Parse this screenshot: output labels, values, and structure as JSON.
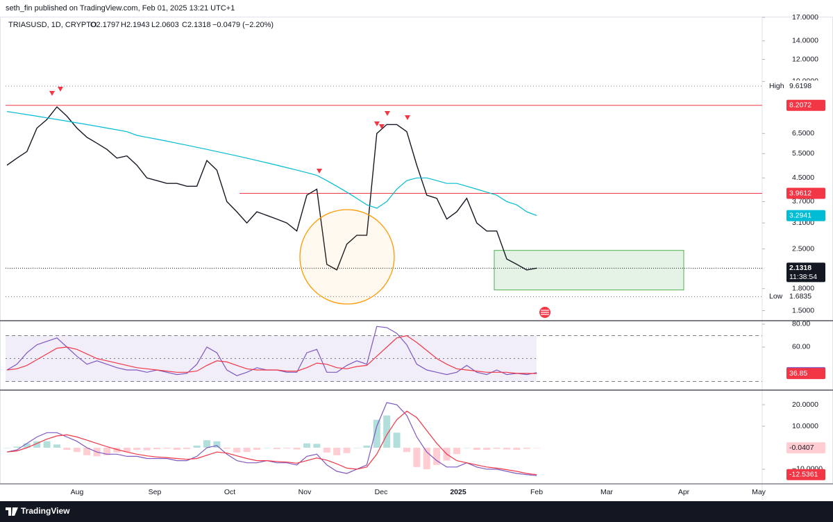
{
  "header": {
    "publisher": "seth_fin published on TradingView.com, Feb 01, 2025 13:21 UTC+1"
  },
  "legend": {
    "symbol": "TRIASUSD, 1D, CRYPTO",
    "open": "O2.1797",
    "high": "H2.1943",
    "low": "L2.0603",
    "close": "C2.1318",
    "change": "−0.0479 (−2.20%)"
  },
  "time_axis": {
    "labels": [
      "Aug",
      "Sep",
      "Oct",
      "Nov",
      "Dec",
      "2025",
      "Feb",
      "Mar",
      "Apr",
      "May"
    ]
  },
  "chart_data": [
    {
      "type": "line",
      "log_scale": true,
      "grid": false,
      "ylim": [
        1.38,
        17.1
      ],
      "yticks": [
        {
          "value": 17,
          "label": "17.0000"
        },
        {
          "value": 14,
          "label": "14.0000"
        },
        {
          "value": 12,
          "label": "12.0000"
        },
        {
          "value": 10,
          "label": "10.0000"
        },
        {
          "value": 6.5,
          "label": "6.5000"
        },
        {
          "value": 5.5,
          "label": "5.5000"
        },
        {
          "value": 4.5,
          "label": "4.5000"
        },
        {
          "value": 3.7,
          "label": "3.7000"
        },
        {
          "value": 3.1,
          "label": "3.1000"
        },
        {
          "value": 2.5,
          "label": "2.5000"
        },
        {
          "value": 1.8,
          "label": "1.8000"
        },
        {
          "value": 1.5,
          "label": "1.5000"
        }
      ],
      "series": [
        {
          "color": "#131722",
          "label_last": true,
          "values": [
            5.0,
            5.3,
            5.6,
            6.8,
            7.3,
            8.1,
            7.5,
            6.8,
            6.3,
            6.0,
            5.7,
            5.3,
            5.4,
            5.0,
            4.5,
            4.4,
            4.3,
            4.3,
            4.2,
            4.2,
            5.2,
            4.8,
            3.7,
            3.4,
            3.1,
            3.4,
            3.3,
            3.2,
            3.1,
            2.9,
            3.9,
            4.1,
            2.2,
            2.1,
            2.6,
            2.8,
            2.8,
            6.5,
            7.0,
            7.0,
            6.6,
            5.0,
            3.9,
            3.8,
            3.2,
            3.4,
            3.8,
            3.1,
            2.9,
            2.9,
            2.3,
            2.2,
            2.1,
            2.1318
          ]
        },
        {
          "color": "#00bcd4",
          "label_last": true,
          "values": [
            7.8,
            7.7,
            7.6,
            7.5,
            7.4,
            7.3,
            7.2,
            7.1,
            7.0,
            6.9,
            6.8,
            6.7,
            6.6,
            6.4,
            6.3,
            6.2,
            6.1,
            6.0,
            5.9,
            5.8,
            5.7,
            5.6,
            5.5,
            5.4,
            5.3,
            5.2,
            5.1,
            5.0,
            4.9,
            4.8,
            4.7,
            4.6,
            4.4,
            4.2,
            4.0,
            3.8,
            3.6,
            3.5,
            3.7,
            4.1,
            4.4,
            4.5,
            4.5,
            4.4,
            4.3,
            4.3,
            4.2,
            4.1,
            4.0,
            3.9,
            3.7,
            3.6,
            3.4,
            3.2941
          ]
        }
      ],
      "countdown": "11:38:54",
      "levels": [
        {
          "name": "High",
          "value": 9.6198,
          "style": "dotted",
          "color": "#787b86"
        },
        {
          "value": 8.2072,
          "style": "solid",
          "color": "#f23645"
        },
        {
          "value": 3.9612,
          "style": "solid",
          "color": "#f23645"
        },
        {
          "name": "Low",
          "value": 1.6835,
          "style": "dotted",
          "color": "#787b86"
        }
      ],
      "zone": [
        1.78,
        2.47
      ]
    },
    {
      "type": "line",
      "log_scale": false,
      "grid": false,
      "ylim": [
        22.4,
        83
      ],
      "yticks": [
        {
          "value": 80,
          "label": "80.00"
        },
        {
          "value": 60,
          "label": "60.00"
        }
      ],
      "band": [
        30,
        70
      ],
      "midline": 50,
      "series": [
        {
          "color": "#7e57c2",
          "label_last": true,
          "values": [
            40,
            45,
            55,
            62,
            65,
            68,
            60,
            52,
            45,
            48,
            45,
            42,
            40,
            40,
            38,
            40,
            38,
            36,
            37,
            45,
            60,
            55,
            40,
            35,
            38,
            42,
            40,
            40,
            38,
            38,
            55,
            58,
            38,
            38,
            44,
            48,
            45,
            78,
            77,
            72,
            62,
            45,
            40,
            38,
            36,
            38,
            44,
            38,
            36,
            40,
            36,
            37,
            36,
            37.63
          ]
        },
        {
          "color": "#f23645",
          "label_last": true,
          "values": [
            40,
            41,
            44,
            49,
            54,
            59,
            60,
            58,
            54,
            50,
            48,
            46,
            44,
            42,
            41,
            40,
            39,
            38,
            38,
            39,
            44,
            48,
            47,
            44,
            41,
            40,
            40,
            40,
            39,
            39,
            42,
            46,
            45,
            42,
            41,
            43,
            44,
            52,
            60,
            68,
            70,
            64,
            57,
            50,
            45,
            41,
            40,
            39,
            38,
            38,
            38,
            37,
            37,
            36.85
          ]
        }
      ]
    },
    {
      "type": "line",
      "log_scale": false,
      "grid": false,
      "ylim": [
        -16.8,
        26.8
      ],
      "yticks": [
        {
          "value": 20,
          "label": "20.0000"
        },
        {
          "value": 10,
          "label": "10.0000"
        },
        {
          "value": -10,
          "label": "−10.0000"
        }
      ],
      "histogram": {
        "colors": [
          "#b2dfdb",
          "#ffcdd2"
        ],
        "label_last": true,
        "label_color": "#ffcdd2",
        "values": [
          0,
          0.5,
          2,
          3,
          3,
          1.5,
          -1,
          -2,
          -3.5,
          -4,
          -3.5,
          -2.2,
          -2,
          -1,
          -1.2,
          -0.7,
          -0.4,
          -1,
          -0.6,
          1,
          3.5,
          3,
          -0.5,
          -2.2,
          -2,
          -1,
          0,
          -0.6,
          -0.3,
          -0.8,
          2,
          1.8,
          -2.2,
          -3.5,
          -2.5,
          0,
          1,
          13,
          15,
          7,
          -2,
          -9,
          -10,
          -8,
          -6,
          -3,
          0,
          -1,
          -1,
          -0.5,
          -0.8,
          -1,
          -0.5,
          -0.0407
        ]
      },
      "series": [
        {
          "color": "#7e57c2",
          "label_last": false,
          "values": [
            -2,
            -1,
            2,
            5,
            7,
            7,
            5,
            3,
            0,
            -2,
            -3,
            -3,
            -4,
            -4,
            -5,
            -5,
            -5,
            -6,
            -6,
            -4,
            0,
            1,
            -3,
            -6,
            -7,
            -7,
            -6,
            -7,
            -7,
            -8,
            -4,
            -3,
            -8,
            -11,
            -12,
            -10,
            -8,
            10,
            21,
            20,
            15,
            5,
            -2,
            -6,
            -9,
            -9,
            -7,
            -9,
            -10,
            -10,
            -11,
            -12,
            -12.5,
            -13
          ]
        },
        {
          "color": "#f23645",
          "label_last": true,
          "values": [
            -2,
            -1.5,
            0,
            2,
            4,
            5.5,
            6,
            5,
            3.5,
            2,
            0.5,
            -0.8,
            -2,
            -3,
            -3.8,
            -4.3,
            -4.6,
            -5,
            -5.4,
            -5,
            -3.5,
            -2,
            -2.5,
            -3.8,
            -5,
            -6,
            -6,
            -6.4,
            -6.7,
            -7.2,
            -6,
            -4.8,
            -5.8,
            -7.5,
            -9.5,
            -10,
            -9,
            -3,
            6,
            13,
            17,
            14,
            8,
            2,
            -3,
            -6,
            -7,
            -8,
            -9,
            -9.5,
            -10.2,
            -11,
            -12,
            -12.5361
          ]
        }
      ]
    }
  ],
  "footer": {
    "brand": "TradingView"
  }
}
